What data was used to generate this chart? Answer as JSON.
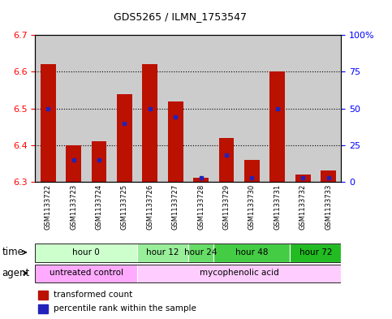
{
  "title": "GDS5265 / ILMN_1753547",
  "samples": [
    "GSM1133722",
    "GSM1133723",
    "GSM1133724",
    "GSM1133725",
    "GSM1133726",
    "GSM1133727",
    "GSM1133728",
    "GSM1133729",
    "GSM1133730",
    "GSM1133731",
    "GSM1133732",
    "GSM1133733"
  ],
  "transformed_counts": [
    6.62,
    6.4,
    6.41,
    6.54,
    6.62,
    6.52,
    6.31,
    6.42,
    6.36,
    6.6,
    6.32,
    6.33
  ],
  "percentile_ranks": [
    50,
    15,
    15,
    40,
    50,
    44,
    3,
    18,
    3,
    50,
    3,
    3
  ],
  "ymin": 6.3,
  "ymax": 6.7,
  "y_ticks": [
    6.3,
    6.4,
    6.5,
    6.6,
    6.7
  ],
  "y2_ticks": [
    0,
    25,
    50,
    75,
    100
  ],
  "bar_color": "#bb1100",
  "percentile_color": "#2222bb",
  "time_groups": [
    {
      "label": "hour 0",
      "start": 0,
      "end": 3,
      "color": "#ccffcc"
    },
    {
      "label": "hour 12",
      "start": 4,
      "end": 5,
      "color": "#99ee99"
    },
    {
      "label": "hour 24",
      "start": 6,
      "end": 6,
      "color": "#66dd66"
    },
    {
      "label": "hour 48",
      "start": 7,
      "end": 9,
      "color": "#44cc44"
    },
    {
      "label": "hour 72",
      "start": 10,
      "end": 11,
      "color": "#22bb22"
    }
  ],
  "agent_groups": [
    {
      "label": "untreated control",
      "start": 0,
      "end": 3,
      "color": "#ffaaff"
    },
    {
      "label": "mycophenolic acid",
      "start": 4,
      "end": 11,
      "color": "#ffccff"
    }
  ],
  "sample_bg_color": "#cccccc",
  "bar_width": 0.6,
  "fig_width": 4.83,
  "fig_height": 3.93,
  "dpi": 100
}
